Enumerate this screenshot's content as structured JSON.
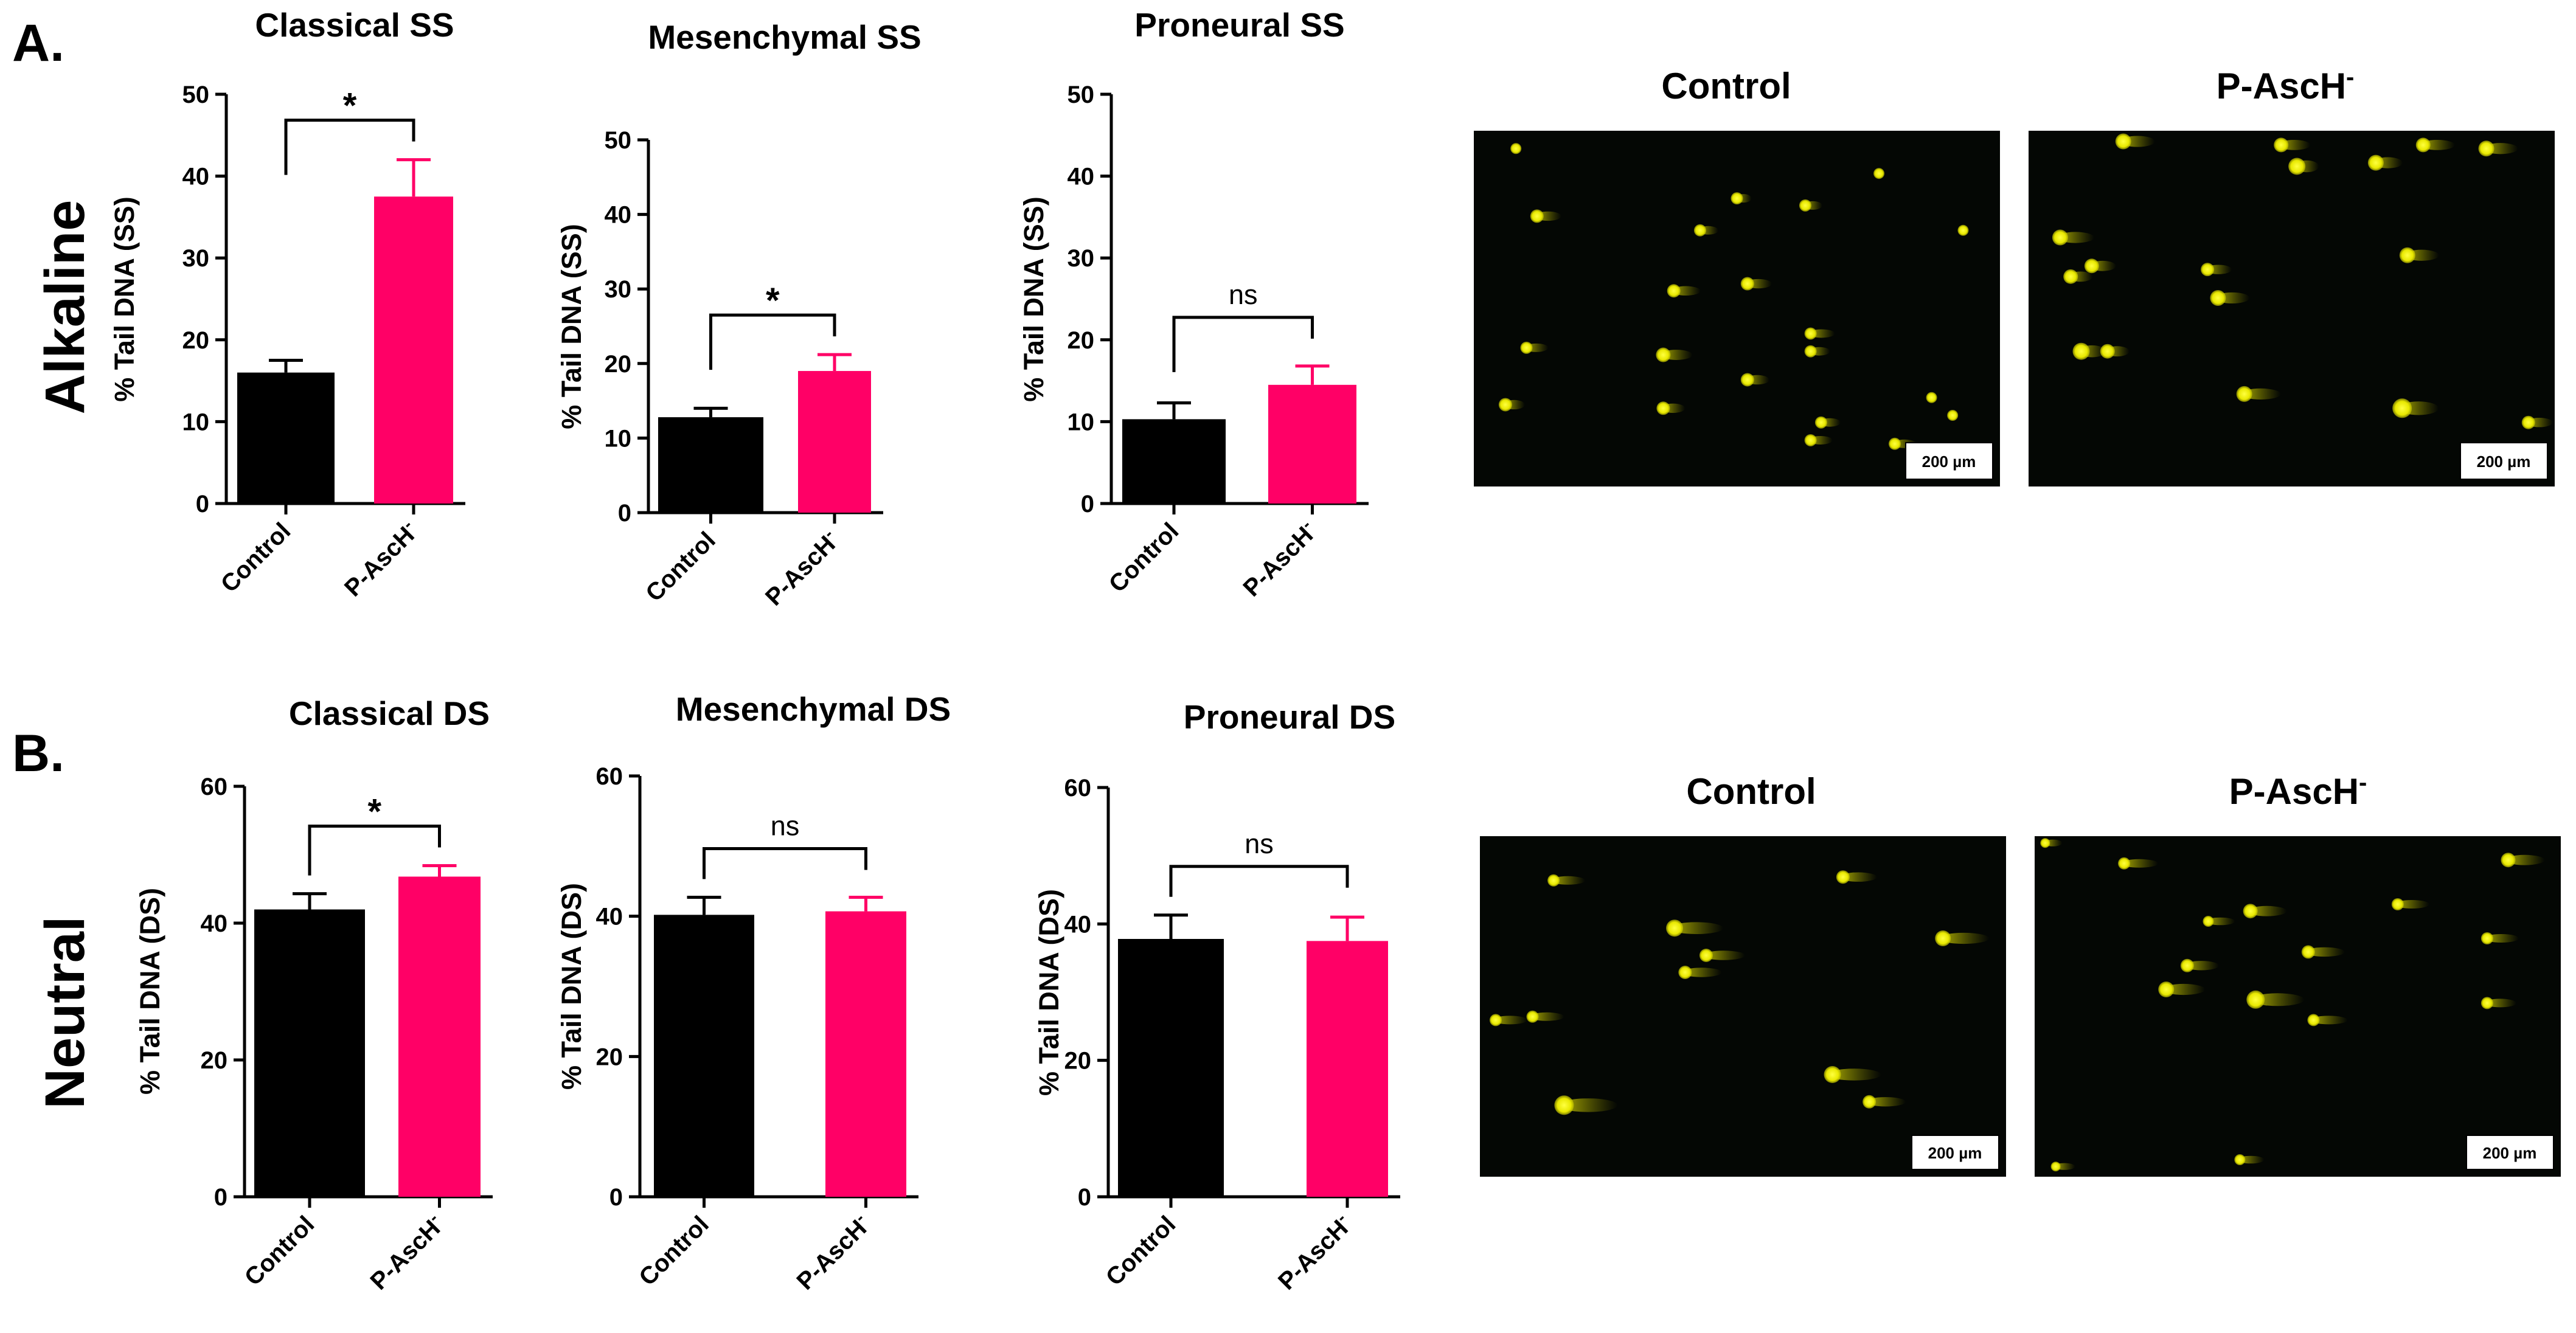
{
  "figure": {
    "panel_a": "A.",
    "panel_b": "B.",
    "row_a_label": "Alkaline",
    "row_b_label": "Neutral"
  },
  "images": [
    {
      "title": "Control",
      "scale_label": "200 µm"
    },
    {
      "title": "P-AscH-",
      "title_main": "P-AscH",
      "title_sup": "-",
      "scale_label": "200 µm"
    },
    {
      "title": "Control",
      "scale_label": "200 µm"
    },
    {
      "title": "P-AscH-",
      "title_main": "P-AscH",
      "title_sup": "-",
      "scale_label": "200 µm"
    }
  ],
  "colors": {
    "control": "#000000",
    "treatment": "#ff0066",
    "axis": "#000000",
    "micrograph_bg": "#040704",
    "comet": "#f2f200"
  },
  "chart_data": [
    {
      "type": "bar",
      "title": "Classical SS",
      "ylabel": "% Tail DNA (SS)",
      "ylim": [
        0,
        50
      ],
      "yticks": [
        0,
        10,
        20,
        30,
        40,
        50
      ],
      "categories": [
        "Control",
        "P-AscH-"
      ],
      "category_main": [
        "Control",
        "P-AscH"
      ],
      "category_sup": [
        "",
        "-"
      ],
      "values": [
        16,
        37.5
      ],
      "errors": [
        1.5,
        4.5
      ],
      "significance": "*"
    },
    {
      "type": "bar",
      "title": "Mesenchymal SS",
      "ylabel": "% Tail DNA (SS)",
      "ylim": [
        0,
        50
      ],
      "yticks": [
        0,
        10,
        20,
        30,
        40,
        50
      ],
      "categories": [
        "Control",
        "P-AscH-"
      ],
      "category_main": [
        "Control",
        "P-AscH"
      ],
      "category_sup": [
        "",
        "-"
      ],
      "values": [
        12.8,
        19
      ],
      "errors": [
        1.2,
        2.2
      ],
      "significance": "*"
    },
    {
      "type": "bar",
      "title": "Proneural SS",
      "ylabel": "% Tail DNA (SS)",
      "ylim": [
        0,
        50
      ],
      "yticks": [
        0,
        10,
        20,
        30,
        40,
        50
      ],
      "categories": [
        "Control",
        "P-AscH-"
      ],
      "category_main": [
        "Control",
        "P-AscH"
      ],
      "category_sup": [
        "",
        "-"
      ],
      "values": [
        10.3,
        14.5
      ],
      "errors": [
        2,
        2.3
      ],
      "significance": "ns"
    },
    {
      "type": "bar",
      "title": "Classical DS",
      "ylabel": "% Tail DNA (DS)",
      "ylim": [
        0,
        60
      ],
      "yticks": [
        0,
        20,
        40,
        60
      ],
      "categories": [
        "Control",
        "P-AscH-"
      ],
      "category_main": [
        "Control",
        "P-AscH"
      ],
      "category_sup": [
        "",
        "-"
      ],
      "values": [
        42,
        46.8
      ],
      "errors": [
        2.3,
        1.6
      ],
      "significance": "*"
    },
    {
      "type": "bar",
      "title": "Mesenchymal DS",
      "ylabel": "% Tail DNA (DS)",
      "ylim": [
        0,
        60
      ],
      "yticks": [
        0,
        20,
        40,
        60
      ],
      "categories": [
        "Control",
        "P-AscH-"
      ],
      "category_main": [
        "Control",
        "P-AscH"
      ],
      "category_sup": [
        "",
        "-"
      ],
      "values": [
        40.2,
        40.7
      ],
      "errors": [
        2.5,
        2
      ],
      "significance": "ns"
    },
    {
      "type": "bar",
      "title": "Proneural DS",
      "ylabel": "% Tail DNA (DS)",
      "ylim": [
        0,
        60
      ],
      "yticks": [
        0,
        20,
        40,
        60
      ],
      "categories": [
        "Control",
        "P-AscH-"
      ],
      "category_main": [
        "Control",
        "P-AscH"
      ],
      "category_sup": [
        "",
        "-"
      ],
      "values": [
        37.8,
        37.5
      ],
      "errors": [
        3.5,
        3.5
      ],
      "significance": "ns"
    }
  ]
}
